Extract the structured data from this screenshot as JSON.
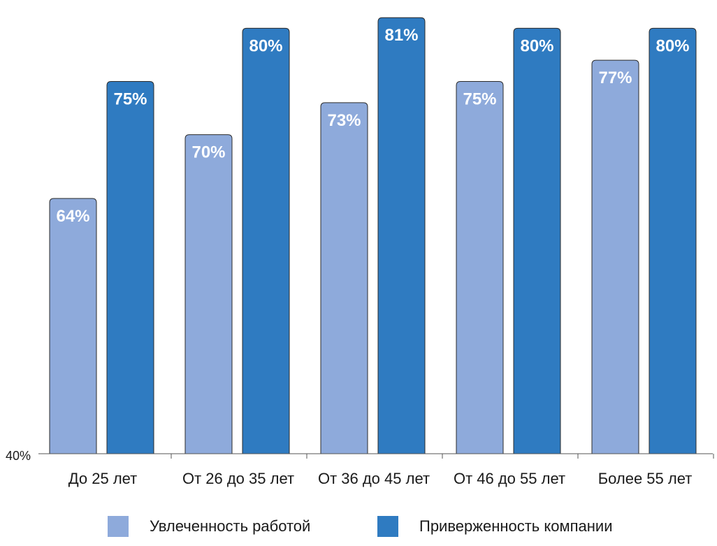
{
  "chart_data": {
    "type": "bar",
    "categories": [
      "До 25 лет",
      "От 26 до 35 лет",
      "От 36 до 45 лет",
      "От 46 до 55 лет",
      "Более 55 лет"
    ],
    "series": [
      {
        "name": "Увлеченность работой",
        "values": [
          64,
          70,
          73,
          75,
          77
        ],
        "labels": [
          "64%",
          "70%",
          "73%",
          "75%",
          "77%"
        ],
        "color": "#8eaadb"
      },
      {
        "name": "Приверженность компании",
        "values": [
          75,
          80,
          81,
          80,
          80
        ],
        "labels": [
          "75%",
          "80%",
          "81%",
          "80%",
          "80%"
        ],
        "color": "#2f7bc1"
      }
    ],
    "ylim": [
      40,
      82
    ],
    "y_axis_label": "40%",
    "grid": false,
    "legend_position": "bottom"
  },
  "legend": {
    "item_1": "Увлеченность работой",
    "item_2": "Приверженность компании",
    "swatch_1_color": "#8eaadb",
    "swatch_2_color": "#2f7bc1"
  }
}
